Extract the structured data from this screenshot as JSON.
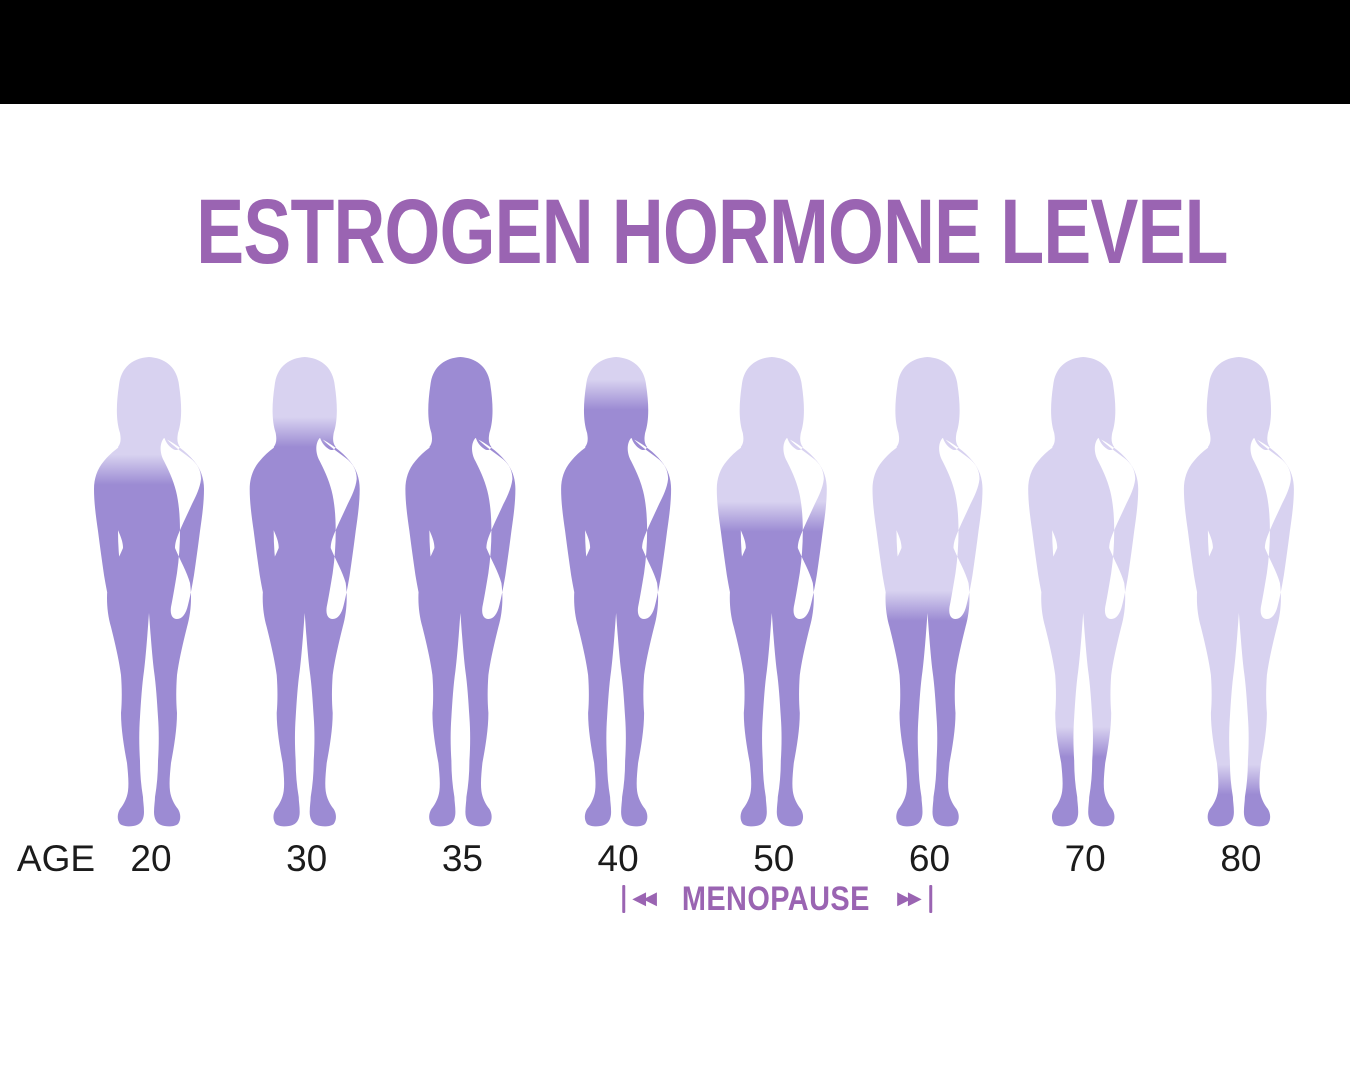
{
  "page": {
    "background": "#ffffff",
    "top_bar_color": "#000000",
    "top_bar_height": 104
  },
  "title": {
    "text": "ESTROGEN HORMONE LEVEL",
    "color": "#9A64B2"
  },
  "age_row": {
    "label": "AGE",
    "text_color": "#1b1b1b"
  },
  "menopause": {
    "text": "MENOPAUSE",
    "left_cap": "|",
    "right_cap": "|",
    "left_arrows": "◀◀",
    "right_arrows": "▶▶",
    "color": "#9A64B2"
  },
  "chart_data": {
    "type": "pictogram",
    "title": "ESTROGEN HORMONE LEVEL",
    "xlabel": "AGE",
    "categories": [
      "20",
      "30",
      "35",
      "40",
      "50",
      "60",
      "70",
      "80"
    ],
    "series": [
      {
        "name": "Estrogen level shown as fraction of female silhouette filled from bottom up",
        "values": [
          0.76,
          0.84,
          1.0,
          0.92,
          0.66,
          0.47,
          0.18,
          0.1
        ]
      }
    ],
    "annotation": {
      "text": "MENOPAUSE",
      "span_categories": [
        "40",
        "60"
      ]
    },
    "legend": "none",
    "grid": "off",
    "colors": {
      "filled": "#9C8BD3",
      "unfilled": "#D8D2F0"
    }
  }
}
